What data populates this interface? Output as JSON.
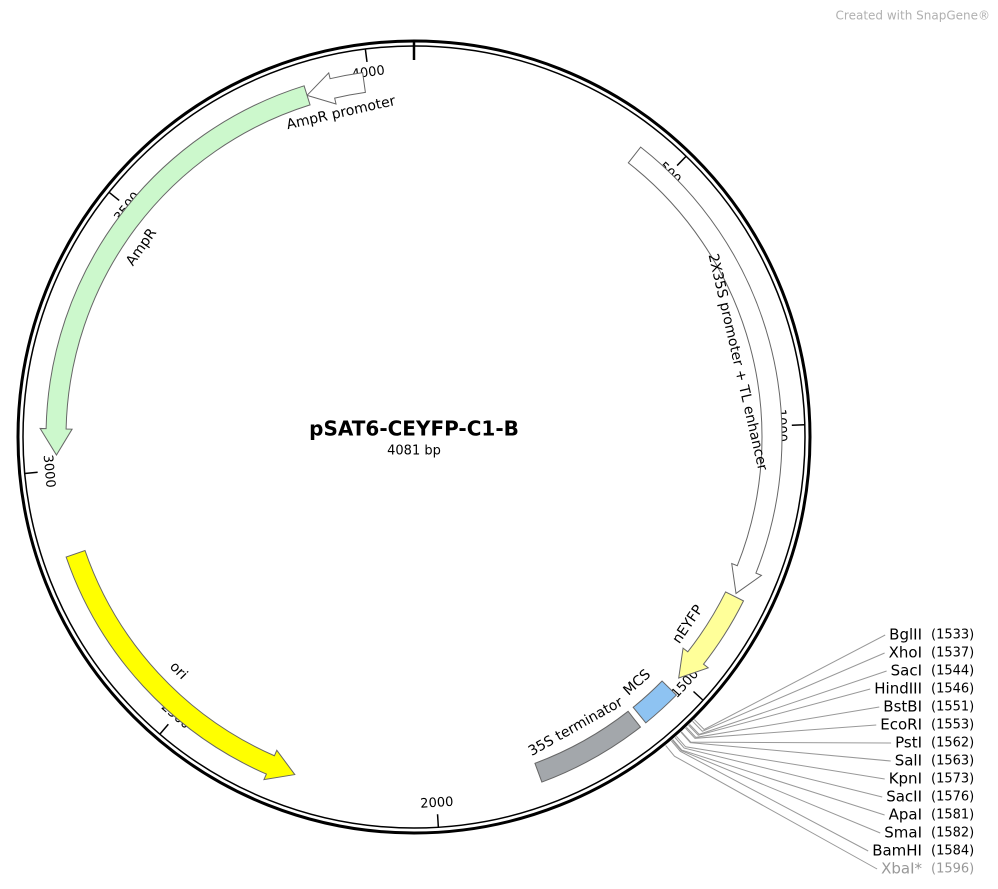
{
  "watermark": "Created with SnapGene®",
  "plasmid": {
    "name": "pSAT6-CEYFP-C1-B",
    "size": {
      "value": 4081,
      "label": "4081 bp"
    }
  },
  "ticks": [
    500,
    1000,
    1500,
    2000,
    2500,
    3000,
    3500,
    4000
  ],
  "features": [
    {
      "label": "AmpR promoter",
      "start": 3884,
      "end": 3990,
      "direction": "reverse",
      "color": "#ffffff"
    },
    {
      "label": "AmpR",
      "start": 3028,
      "end": 3884,
      "direction": "reverse",
      "color": "#ccf8cc"
    },
    {
      "label": "2X35S promoter + TL enhancer",
      "start": 431,
      "end": 1314,
      "direction": "forward",
      "color": "#ffffff"
    },
    {
      "label": "nEYFP",
      "start": 1320,
      "end": 1500,
      "direction": "forward",
      "color": "#ffff99"
    },
    {
      "label": "MCS",
      "start": 1525,
      "end": 1598,
      "direction": "none",
      "color": "#8ec3f2"
    },
    {
      "label": "35S terminator",
      "start": 1610,
      "end": 1810,
      "direction": "none",
      "color": "#a3a7ab"
    },
    {
      "label": "ori",
      "start": 2261,
      "end": 2845,
      "direction": "reverse",
      "color": "#ffff00"
    }
  ],
  "enzymes": [
    {
      "name": "BglII",
      "position": 1533,
      "position_label": "(1533)"
    },
    {
      "name": "XhoI",
      "position": 1537,
      "position_label": "(1537)"
    },
    {
      "name": "SacI",
      "position": 1544,
      "position_label": "(1544)"
    },
    {
      "name": "HindIII",
      "position": 1546,
      "position_label": "(1546)"
    },
    {
      "name": "BstBI",
      "position": 1551,
      "position_label": "(1551)"
    },
    {
      "name": "EcoRI",
      "position": 1553,
      "position_label": "(1553)"
    },
    {
      "name": "PstI",
      "position": 1562,
      "position_label": "(1562)"
    },
    {
      "name": "SalI",
      "position": 1563,
      "position_label": "(1563)"
    },
    {
      "name": "KpnI",
      "position": 1573,
      "position_label": "(1573)"
    },
    {
      "name": "SacII",
      "position": 1576,
      "position_label": "(1576)"
    },
    {
      "name": "ApaI",
      "position": 1581,
      "position_label": "(1581)"
    },
    {
      "name": "SmaI",
      "position": 1582,
      "position_label": "(1582)"
    },
    {
      "name": "BamHI",
      "position": 1584,
      "position_label": "(1584)"
    },
    {
      "name": "XbaI*",
      "position": 1596,
      "position_label": "(1596)",
      "color": "#999999"
    }
  ]
}
